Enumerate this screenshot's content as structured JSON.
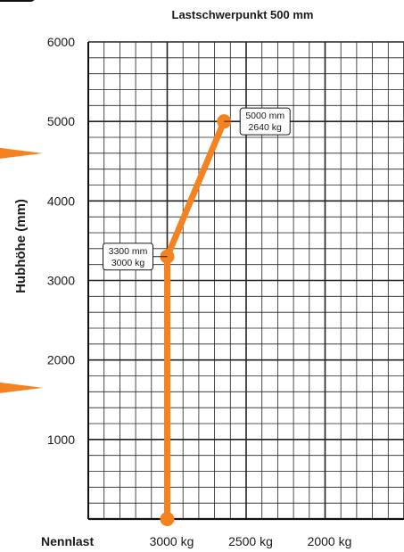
{
  "chart_data": {
    "type": "line",
    "title": "Lastschwerpunkt 500 mm",
    "ylabel": "Hubhöhe (mm)",
    "xlabel": "Nennlast",
    "x_ticks": [
      "3000 kg",
      "2500 kg",
      "2000 kg"
    ],
    "y_ticks": [
      "1000",
      "2000",
      "3000",
      "4000",
      "5000",
      "6000"
    ],
    "ylim": [
      0,
      6000
    ],
    "xlim_kg": [
      3500,
      1500
    ],
    "grid": true,
    "series": [
      {
        "points": [
          {
            "load_kg": 3000,
            "height_mm": 0
          },
          {
            "load_kg": 3000,
            "height_mm": 3300
          },
          {
            "load_kg": 2640,
            "height_mm": 5000
          }
        ],
        "color": "#f58220"
      }
    ],
    "annotations": [
      {
        "line1": "3300 mm",
        "line2": "3000 kg",
        "load_kg": 3000,
        "height_mm": 3300
      },
      {
        "line1": "5000 mm",
        "line2": "2640 kg",
        "load_kg": 2640,
        "height_mm": 5000
      }
    ],
    "markers": {
      "arrow_color": "#f58220",
      "arrows_at_mm": [
        4600,
        1650
      ]
    }
  }
}
